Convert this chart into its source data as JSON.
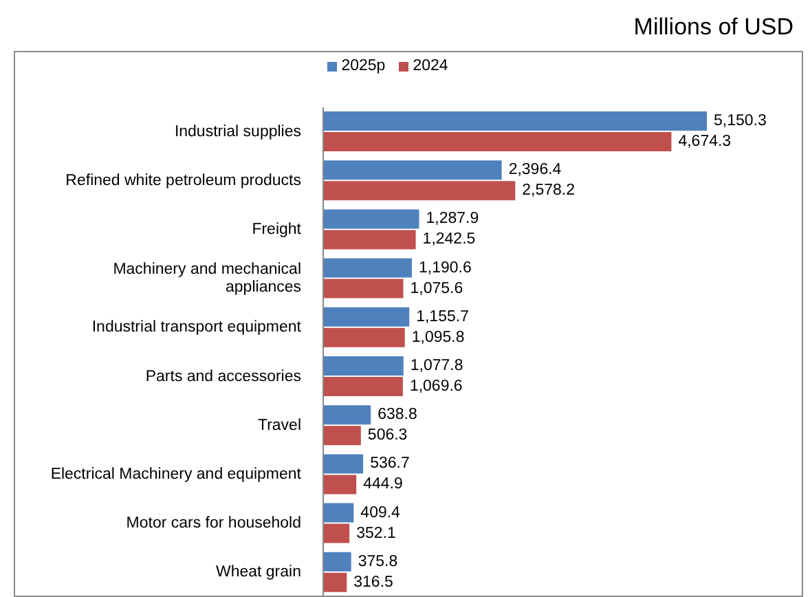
{
  "chart_data": {
    "type": "bar",
    "orientation": "horizontal",
    "title": "Millions of USD",
    "categories": [
      "Industrial supplies",
      "Refined white petroleum products",
      "Freight",
      "Machinery and mechanical\nappliances",
      "Industrial transport equipment",
      "Parts and accessories",
      "Travel",
      "Electrical Machinery and equipment",
      "Motor cars for household",
      "Wheat grain"
    ],
    "series": [
      {
        "name": "2025p",
        "color": "#4f81bd",
        "values": [
          5150.3,
          2396.4,
          1287.9,
          1190.6,
          1155.7,
          1077.8,
          638.8,
          536.7,
          409.4,
          375.8
        ],
        "value_labels": [
          "5,150.3",
          "2,396.4",
          "1,287.9",
          "1,190.6",
          "1,155.7",
          "1,077.8",
          "638.8",
          "536.7",
          "409.4",
          "375.8"
        ]
      },
      {
        "name": "2024",
        "color": "#c0504d",
        "values": [
          4674.3,
          2578.2,
          1242.5,
          1075.6,
          1095.8,
          1069.6,
          506.3,
          444.9,
          352.1,
          316.5
        ],
        "value_labels": [
          "4,674.3",
          "2,578.2",
          "1,242.5",
          "1,075.6",
          "1,095.8",
          "1,069.6",
          "506.3",
          "444.9",
          "352.1",
          "316.5"
        ]
      }
    ],
    "legend": "top"
  }
}
